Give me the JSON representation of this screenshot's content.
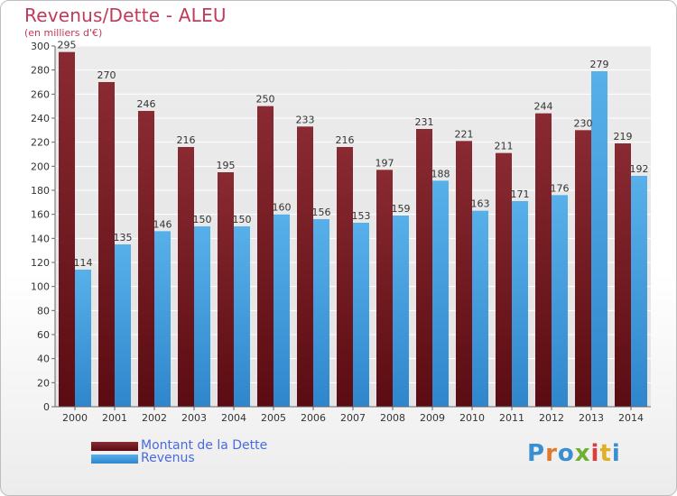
{
  "header": {
    "title": "Revenus/Dette - ALEU",
    "subtitle": "(en milliers d'€)"
  },
  "logo": {
    "text": "Proxiti",
    "letter_colors": [
      "#3a8fd0",
      "#e07a2a",
      "#3a8fd0",
      "#6fb030",
      "#e03a3a",
      "#e0b020",
      "#3a8fd0"
    ]
  },
  "colors": {
    "debt": "#7a1e24",
    "revenue": "#4fa6e2",
    "title": "#c03a5a",
    "legend_text": "#4a6ae0"
  },
  "chart_data": {
    "type": "bar",
    "title": "Revenus/Dette - ALEU",
    "subtitle": "(en milliers d'€)",
    "categories": [
      "2000",
      "2001",
      "2002",
      "2003",
      "2004",
      "2005",
      "2006",
      "2007",
      "2008",
      "2009",
      "2010",
      "2011",
      "2012",
      "2013",
      "2014"
    ],
    "series": [
      {
        "name": "Montant de la Dette",
        "values": [
          295,
          270,
          246,
          216,
          195,
          250,
          233,
          216,
          197,
          231,
          221,
          211,
          244,
          230,
          219
        ]
      },
      {
        "name": "Revenus",
        "values": [
          114,
          135,
          146,
          150,
          150,
          160,
          156,
          153,
          159,
          188,
          163,
          171,
          176,
          279,
          192
        ]
      }
    ],
    "yticks": [
      0,
      20,
      40,
      60,
      80,
      100,
      120,
      140,
      160,
      180,
      200,
      220,
      240,
      260,
      280,
      300
    ],
    "ylim": [
      0,
      300
    ],
    "grid": true,
    "legend_position": "bottom-left"
  }
}
